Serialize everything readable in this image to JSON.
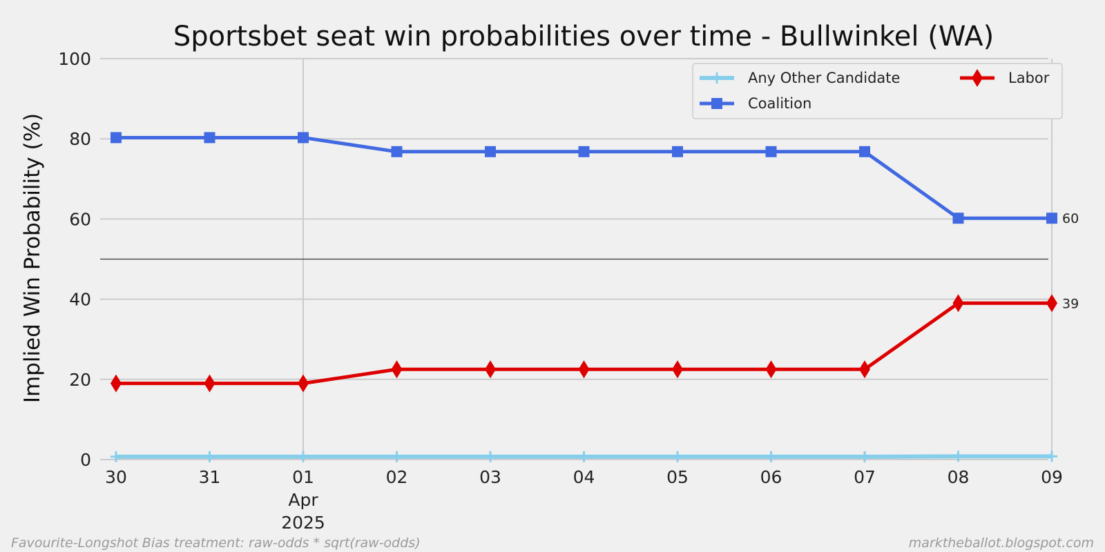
{
  "chart_data": {
    "type": "line",
    "title": "Sportsbet seat win probabilities over time - Bullwinkel (WA)",
    "ylabel": "Implied Win Probability (%)",
    "xlabel": "",
    "ylim": [
      0,
      100
    ],
    "y_ticks": [
      0,
      20,
      40,
      60,
      80,
      100
    ],
    "categories": [
      "30",
      "31",
      "01",
      "02",
      "03",
      "04",
      "05",
      "06",
      "07",
      "08",
      "09"
    ],
    "x_sub_labels": {
      "01": [
        "Apr",
        "2025"
      ]
    },
    "major_x_gridline_at": "01",
    "reference_line_y": 50,
    "grid": true,
    "legend_position": "top-right",
    "series": [
      {
        "name": "Any Other Candidate",
        "color": "#87ceeb",
        "marker": "plus",
        "values": [
          0.7,
          0.7,
          0.7,
          0.7,
          0.7,
          0.7,
          0.7,
          0.7,
          0.7,
          0.8,
          0.8
        ]
      },
      {
        "name": "Coalition",
        "color": "#4169e1",
        "marker": "square",
        "values": [
          80.3,
          80.3,
          80.3,
          76.8,
          76.8,
          76.8,
          76.8,
          76.8,
          76.8,
          60.2,
          60.2
        ]
      },
      {
        "name": "Labor",
        "color": "#dd0000",
        "marker": "diamond",
        "values": [
          19.0,
          19.0,
          19.0,
          22.5,
          22.5,
          22.5,
          22.5,
          22.5,
          22.5,
          39.0,
          39.0
        ]
      }
    ],
    "end_labels": [
      {
        "series": "Coalition",
        "text": "60"
      },
      {
        "series": "Labor",
        "text": "39"
      }
    ]
  },
  "footer": {
    "left": "Favourite-Longshot Bias treatment: raw-odds * sqrt(raw-odds)",
    "right": "marktheballot.blogspot.com"
  },
  "colors": {
    "background": "#f0f0f0",
    "grid": "#cbcbcb",
    "reference": "#333333"
  }
}
